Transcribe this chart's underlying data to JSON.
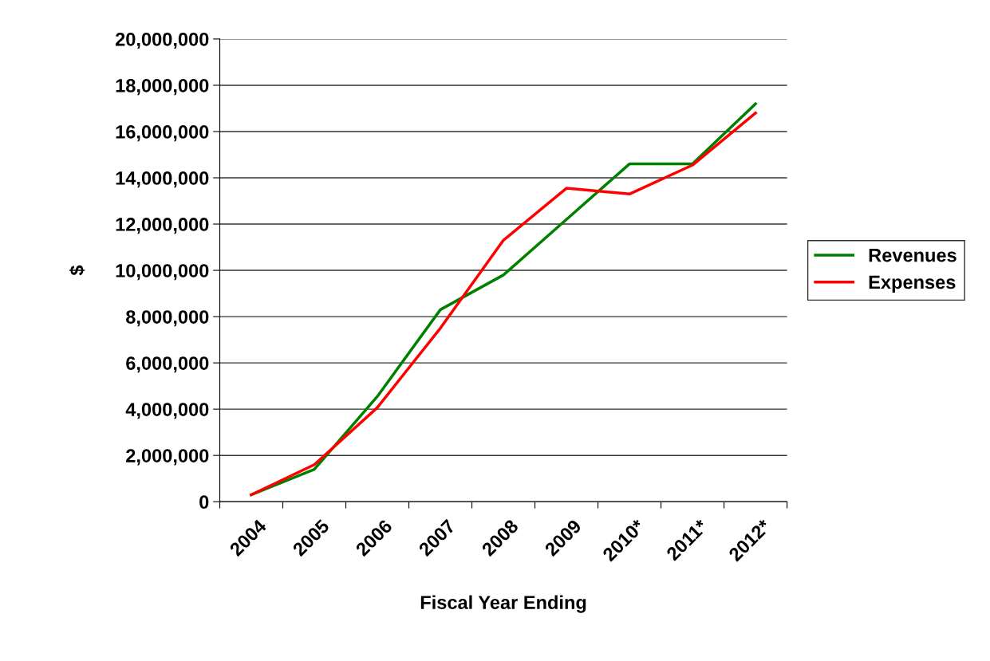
{
  "chart_data": {
    "type": "line",
    "xlabel": "Fiscal Year Ending",
    "ylabel": "$",
    "categories": [
      "2004",
      "2005",
      "2006",
      "2007",
      "2008",
      "2009",
      "2010*",
      "2011*",
      "2012*"
    ],
    "series": [
      {
        "name": "Revenues",
        "color": "#008000",
        "values": [
          300000,
          1400000,
          4550000,
          8300000,
          9800000,
          12200000,
          14600000,
          14600000,
          17200000
        ]
      },
      {
        "name": "Expenses",
        "color": "#ff0000",
        "values": [
          300000,
          1600000,
          4070000,
          7500000,
          11300000,
          13550000,
          13300000,
          14550000,
          16800000
        ]
      }
    ],
    "ylim": [
      0,
      20000000
    ],
    "yticks": [
      {
        "value": 0,
        "label": "0"
      },
      {
        "value": 2000000,
        "label": "2,000,000"
      },
      {
        "value": 4000000,
        "label": "4,000,000"
      },
      {
        "value": 6000000,
        "label": "6,000,000"
      },
      {
        "value": 8000000,
        "label": "8,000,000"
      },
      {
        "value": 10000000,
        "label": "10,000,000"
      },
      {
        "value": 12000000,
        "label": "12,000,000"
      },
      {
        "value": 14000000,
        "label": "14,000,000"
      },
      {
        "value": 16000000,
        "label": "16,000,000"
      },
      {
        "value": 18000000,
        "label": "18,000,000"
      },
      {
        "value": 20000000,
        "label": "20,000,000"
      }
    ],
    "grid": "y",
    "legend": "right",
    "marker": "none",
    "line_style": "solid"
  }
}
